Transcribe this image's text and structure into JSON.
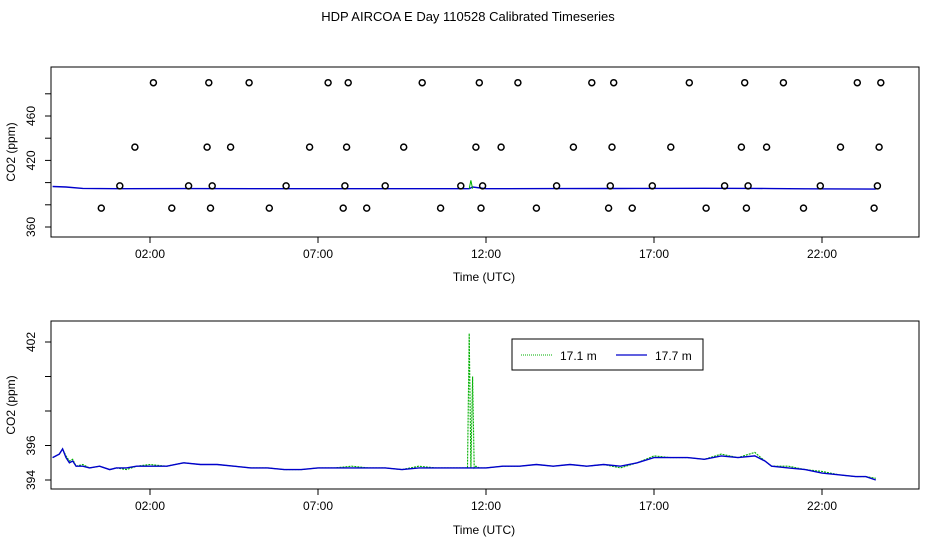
{
  "title": "HDP AIRCOA E  Day 110528  Calibrated Timeseries",
  "colors": {
    "green": "#00b000",
    "blue": "#0000cc",
    "points": "#000000"
  },
  "chart_data": [
    {
      "type": "scatter",
      "title": "",
      "xlabel": "Time (UTC)",
      "ylabel": "CO2 (ppm)",
      "x_ticks": [
        "02:00",
        "07:00",
        "12:00",
        "17:00",
        "22:00"
      ],
      "y_ticks": [
        "360",
        "420",
        "460"
      ],
      "xlim": [
        -1.7,
        24.2
      ],
      "ylim": [
        353,
        493
      ],
      "points_x_hours": [
        0.55,
        1.1,
        1.55,
        2.1,
        2.65,
        3.15,
        3.7,
        3.75,
        3.8,
        3.85,
        4.4,
        4.95,
        5.55,
        6.05,
        6.75,
        7.3,
        7.75,
        7.8,
        7.85,
        7.9,
        8.45,
        9.0,
        9.55,
        10.1,
        10.65,
        11.25,
        11.7,
        11.8,
        11.85,
        11.9,
        12.45,
        12.95,
        13.5,
        14.1,
        14.6,
        15.15,
        15.65,
        15.7,
        15.75,
        15.8,
        16.35,
        16.95,
        17.5,
        18.05,
        18.55,
        19.1,
        19.6,
        19.7,
        19.75,
        19.8,
        20.35,
        20.85,
        21.45,
        21.95,
        22.55,
        23.05,
        23.55,
        23.65,
        23.7,
        23.75
      ],
      "points_y": [
        377,
        397,
        432,
        490,
        377,
        397,
        432,
        490,
        377,
        397,
        432,
        490,
        377,
        397,
        432,
        490,
        377,
        397,
        432,
        490,
        377,
        397,
        432,
        490,
        377,
        397,
        432,
        490,
        377,
        397,
        432,
        490,
        377,
        397,
        432,
        490,
        377,
        397,
        432,
        490,
        377,
        397,
        432,
        490,
        377,
        397,
        432,
        490,
        377,
        397,
        432,
        490,
        377,
        397,
        432,
        490,
        377,
        397,
        432,
        490
      ],
      "series": [
        {
          "label": "blue flat line",
          "x_hours": [
            -0.9,
            -0.5,
            0.0,
            0.5,
            1.0,
            3.0,
            6.0,
            9.0,
            11.5,
            11.6,
            12.0,
            14.0,
            16.0,
            17.0,
            18.5,
            20.0,
            20.5,
            21.5,
            22.5,
            23.6
          ],
          "values": [
            396.5,
            396.0,
            394.8,
            394.6,
            394.5,
            394.6,
            394.5,
            394.5,
            394.5,
            396,
            394.5,
            394.6,
            394.7,
            394.8,
            394.9,
            394.8,
            394.6,
            394.4,
            394.3,
            394.1
          ]
        }
      ]
    },
    {
      "type": "line",
      "title": "",
      "xlabel": "Time (UTC)",
      "ylabel": "CO2 (ppm)",
      "x_ticks": [
        "02:00",
        "07:00",
        "12:00",
        "17:00",
        "22:00"
      ],
      "y_ticks": [
        "394",
        "396",
        "402"
      ],
      "xlim": [
        -1.7,
        24.2
      ],
      "ylim": [
        393.6,
        402.8
      ],
      "legend": [
        "17.1 m",
        "17.7 m"
      ],
      "legend_position": "top-center",
      "series": [
        {
          "name": "17.1 m",
          "x_hours": [
            -0.9,
            -0.8,
            -0.7,
            -0.6,
            -0.5,
            -0.4,
            -0.3,
            -0.2,
            0.0,
            0.2,
            0.5,
            0.8,
            1.0,
            1.3,
            1.6,
            2.0,
            2.5,
            3.0,
            3.5,
            4.0,
            4.5,
            5.0,
            5.5,
            6.0,
            6.5,
            7.0,
            7.5,
            8.0,
            8.5,
            9.0,
            9.5,
            10.0,
            10.5,
            11.0,
            11.3,
            11.45,
            11.5,
            11.55,
            11.6,
            11.65,
            11.7,
            11.8,
            12.0,
            12.5,
            13.0,
            13.5,
            14.0,
            14.5,
            15.0,
            15.5,
            16.0,
            16.5,
            17.0,
            17.5,
            18.0,
            18.5,
            19.0,
            19.5,
            20.0,
            20.3,
            20.5,
            21.0,
            21.5,
            22.0,
            22.5,
            23.0,
            23.3,
            23.6
          ],
          "values": [
            395.3,
            395.4,
            395.5,
            395.8,
            395.4,
            395.1,
            395.2,
            394.8,
            394.9,
            394.7,
            394.8,
            394.6,
            394.7,
            394.6,
            394.8,
            394.9,
            394.8,
            395.0,
            394.9,
            394.9,
            394.8,
            394.7,
            394.7,
            394.6,
            394.6,
            394.7,
            394.7,
            394.8,
            394.7,
            394.7,
            394.6,
            394.8,
            394.7,
            394.7,
            394.7,
            394.7,
            402.5,
            394.7,
            400.0,
            394.7,
            394.8,
            394.7,
            394.7,
            394.8,
            394.8,
            394.9,
            394.8,
            394.9,
            394.8,
            394.9,
            394.7,
            395.0,
            395.4,
            395.3,
            395.3,
            395.2,
            395.5,
            395.3,
            395.6,
            395.1,
            394.8,
            394.8,
            394.6,
            394.5,
            394.3,
            394.2,
            394.2,
            394.1
          ]
        },
        {
          "name": "17.7 m",
          "x_hours": [
            -0.9,
            -0.8,
            -0.7,
            -0.6,
            -0.5,
            -0.4,
            -0.3,
            -0.2,
            0.0,
            0.2,
            0.5,
            0.8,
            1.0,
            1.3,
            1.6,
            2.0,
            2.5,
            3.0,
            3.5,
            4.0,
            4.5,
            5.0,
            5.5,
            6.0,
            6.5,
            7.0,
            7.5,
            8.0,
            8.5,
            9.0,
            9.5,
            10.0,
            10.5,
            11.0,
            11.5,
            12.0,
            12.5,
            13.0,
            13.5,
            14.0,
            14.5,
            15.0,
            15.5,
            16.0,
            16.5,
            17.0,
            17.5,
            18.0,
            18.5,
            19.0,
            19.5,
            20.0,
            20.3,
            20.5,
            21.0,
            21.5,
            22.0,
            22.5,
            23.0,
            23.3,
            23.6
          ],
          "values": [
            395.3,
            395.4,
            395.5,
            395.8,
            395.3,
            395.0,
            395.1,
            394.8,
            394.8,
            394.7,
            394.8,
            394.6,
            394.7,
            394.7,
            394.8,
            394.8,
            394.8,
            395.0,
            394.9,
            394.9,
            394.8,
            394.7,
            394.7,
            394.6,
            394.6,
            394.7,
            394.7,
            394.7,
            394.7,
            394.7,
            394.6,
            394.7,
            394.7,
            394.7,
            394.7,
            394.7,
            394.8,
            394.8,
            394.9,
            394.8,
            394.9,
            394.8,
            394.9,
            394.8,
            395.0,
            395.3,
            395.3,
            395.3,
            395.2,
            395.4,
            395.3,
            395.4,
            395.1,
            394.8,
            394.7,
            394.6,
            394.4,
            394.3,
            394.2,
            394.2,
            394.0
          ]
        }
      ]
    }
  ]
}
